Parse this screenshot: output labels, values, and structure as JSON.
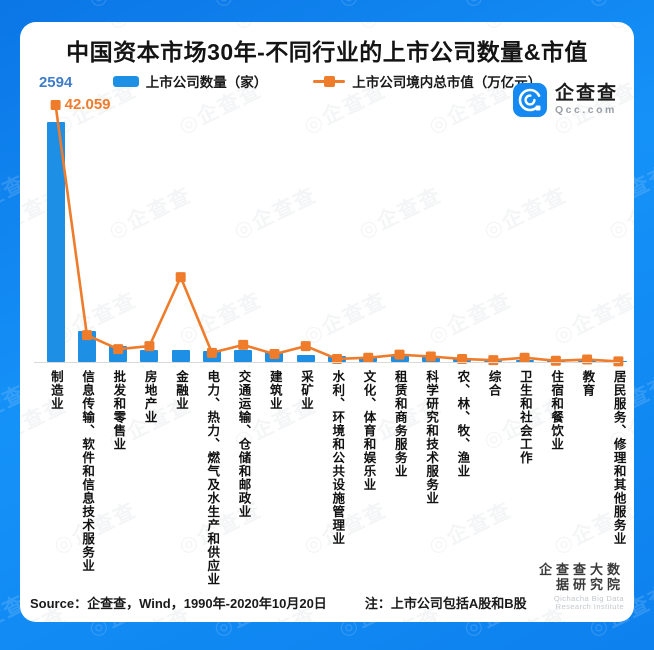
{
  "title": "中国资本市场30年-不同行业的上市公司数量&市值",
  "colors": {
    "frame_blue": "#0e86f2",
    "bar_blue": "#1d8fe4",
    "line_orange": "#ee7c2b",
    "bar_label_blue": "#3f7dca",
    "axis_gray": "#d9d9d9"
  },
  "legend": {
    "position": "top"
  },
  "logo": {
    "name": "企查查",
    "domain": "Qcc.com"
  },
  "annotations": {
    "bar_label": "2594",
    "line_label": "42.059"
  },
  "chart_data": {
    "type": "bar",
    "combo": "bar+line",
    "title": "中国资本市场30年-不同行业的上市公司数量&市值",
    "categories": [
      "制造业",
      "信息传输、软件和信息技术服务业",
      "批发和零售业",
      "房地产业",
      "金融业",
      "电力、热力、燃气及水生产和供应业",
      "交通运输、仓储和邮政业",
      "建筑业",
      "采矿业",
      "水利、环境和公共设施管理业",
      "文化、体育和娱乐业",
      "租赁和商务服务业",
      "科学研究和技术服务业",
      "农、林、牧、渔业",
      "综合",
      "卫生和社会工作",
      "住宿和餐饮业",
      "教育",
      "居民服务、修理和其他服务业"
    ],
    "series": [
      {
        "name": "上市公司数量（家）",
        "type": "bar",
        "color": "#1d8fe4",
        "values": [
          2594,
          335,
          170,
          130,
          125,
          120,
          125,
          105,
          80,
          62,
          55,
          60,
          66,
          48,
          24,
          18,
          9,
          13,
          6
        ]
      },
      {
        "name": "上市公司境内总市值（万亿元）",
        "type": "line",
        "color": "#ee7c2b",
        "values": [
          42.059,
          4.4,
          2.1,
          2.6,
          13.9,
          1.5,
          2.8,
          1.3,
          2.6,
          0.5,
          0.7,
          1.2,
          0.9,
          0.5,
          0.3,
          0.7,
          0.2,
          0.4,
          0.1
        ]
      }
    ],
    "data_labels_shown": {
      "category": "制造业",
      "companies": "2594",
      "market_cap": "42.059"
    },
    "values_estimated_from_pixels": true,
    "grid": false,
    "legend_position": "top",
    "ylim_bar": [
      0,
      2800
    ],
    "ylim_line": [
      0,
      44
    ]
  },
  "footer": {
    "source": "Source：企查查，Wind，1990年-2020年10月20日",
    "note": "注：上市公司包括A股和B股",
    "org": "企查查大数据研究院",
    "org_en": "Qichacha Big Data Research Institute"
  },
  "watermark": {
    "glyph": "◎",
    "text": "企查查"
  }
}
